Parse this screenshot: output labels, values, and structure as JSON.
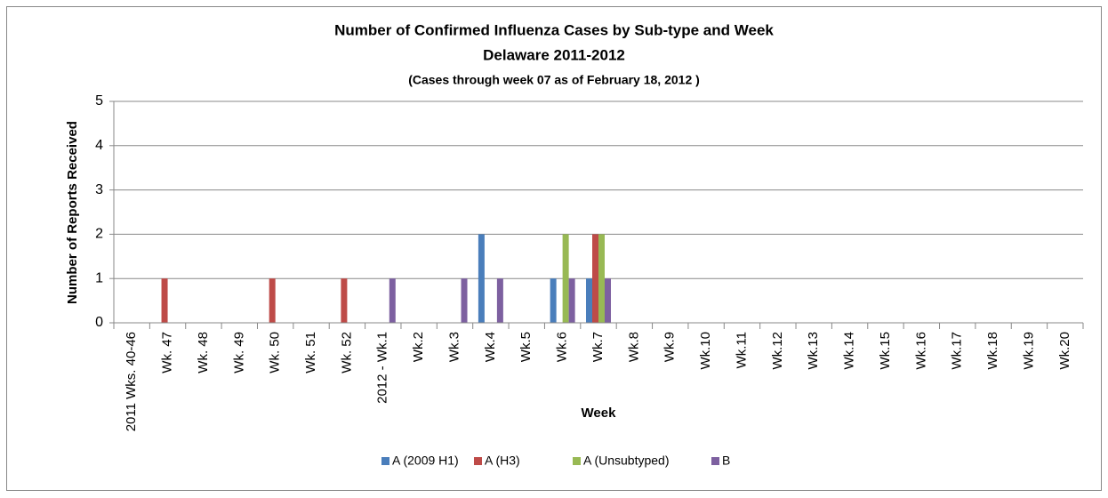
{
  "chart_data": {
    "type": "bar",
    "title": "Number of Confirmed Influenza Cases by Sub-type and Week",
    "subtitle": "Delaware 2011-2012",
    "note": "(Cases through week 07 as of February 18, 2012 )",
    "y_label": "Number of Reports Received",
    "x_label": "Week",
    "categories": [
      "2011 Wks. 40-46",
      "Wk. 47",
      "Wk. 48",
      "Wk. 49",
      "Wk. 50",
      "Wk. 51",
      "Wk. 52",
      "2012 - Wk.1",
      "Wk.2",
      "Wk.3",
      "Wk.4",
      "Wk.5",
      "Wk.6",
      "Wk.7",
      "Wk.8",
      "Wk.9",
      "Wk.10",
      "Wk.11",
      "Wk.12",
      "Wk.13",
      "Wk.14",
      "Wk.15",
      "Wk.16",
      "Wk.17",
      "Wk.18",
      "Wk.19",
      "Wk.20"
    ],
    "series": [
      {
        "name": "A (2009 H1)",
        "color": "#4a7ebb",
        "values": [
          0,
          0,
          0,
          0,
          0,
          0,
          0,
          0,
          0,
          0,
          2,
          0,
          1,
          1,
          0,
          0,
          0,
          0,
          0,
          0,
          0,
          0,
          0,
          0,
          0,
          0,
          0
        ]
      },
      {
        "name": "A (H3)",
        "color": "#be4b48",
        "values": [
          0,
          1,
          0,
          0,
          1,
          0,
          1,
          0,
          0,
          0,
          0,
          0,
          0,
          2,
          0,
          0,
          0,
          0,
          0,
          0,
          0,
          0,
          0,
          0,
          0,
          0,
          0
        ]
      },
      {
        "name": "A (Unsubtyped)",
        "color": "#98b954",
        "values": [
          0,
          0,
          0,
          0,
          0,
          0,
          0,
          0,
          0,
          0,
          0,
          0,
          2,
          2,
          0,
          0,
          0,
          0,
          0,
          0,
          0,
          0,
          0,
          0,
          0,
          0,
          0
        ]
      },
      {
        "name": "B",
        "color": "#7d60a0",
        "values": [
          0,
          0,
          0,
          0,
          0,
          0,
          0,
          1,
          0,
          1,
          1,
          0,
          1,
          1,
          0,
          0,
          0,
          0,
          0,
          0,
          0,
          0,
          0,
          0,
          0,
          0,
          0
        ]
      }
    ],
    "ylim": [
      0,
      5
    ],
    "yticks": [
      0,
      1,
      2,
      3,
      4,
      5
    ],
    "grid": true,
    "legend": "bottom"
  }
}
